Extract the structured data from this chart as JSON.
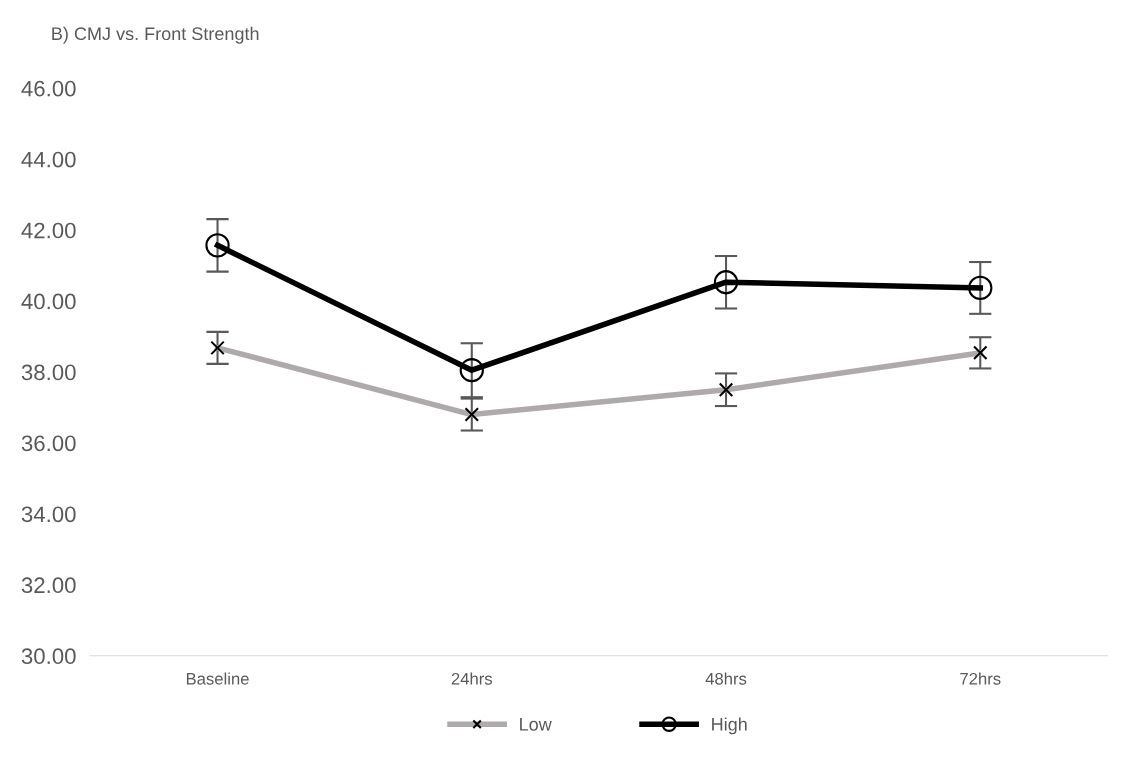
{
  "chart_data": {
    "type": "line",
    "title": "B) CMJ vs. Front Strength",
    "categories": [
      "Baseline",
      "24hrs",
      "48hrs",
      "72hrs"
    ],
    "series": [
      {
        "name": "Low",
        "color": "#aeaaaa",
        "marker": "cross",
        "values": [
          38.68,
          36.8,
          37.5,
          38.54
        ],
        "errors": [
          0.45,
          0.45,
          0.46,
          0.44
        ]
      },
      {
        "name": "High",
        "color": "#000000",
        "marker": "circle",
        "values": [
          41.57,
          38.05,
          40.53,
          40.37
        ],
        "errors": [
          0.74,
          0.76,
          0.74,
          0.73
        ]
      }
    ],
    "ylim": [
      30,
      46
    ],
    "yticks": [
      {
        "value": 30,
        "label": "30.00"
      },
      {
        "value": 32,
        "label": "32.00"
      },
      {
        "value": 34,
        "label": "34.00"
      },
      {
        "value": 36,
        "label": "36.00"
      },
      {
        "value": 38,
        "label": "38.00"
      },
      {
        "value": 40,
        "label": "40.00"
      },
      {
        "value": 42,
        "label": "42.00"
      },
      {
        "value": 44,
        "label": "44.00"
      },
      {
        "value": 46,
        "label": "46.00"
      }
    ],
    "legend": "bottom",
    "grid": false
  }
}
